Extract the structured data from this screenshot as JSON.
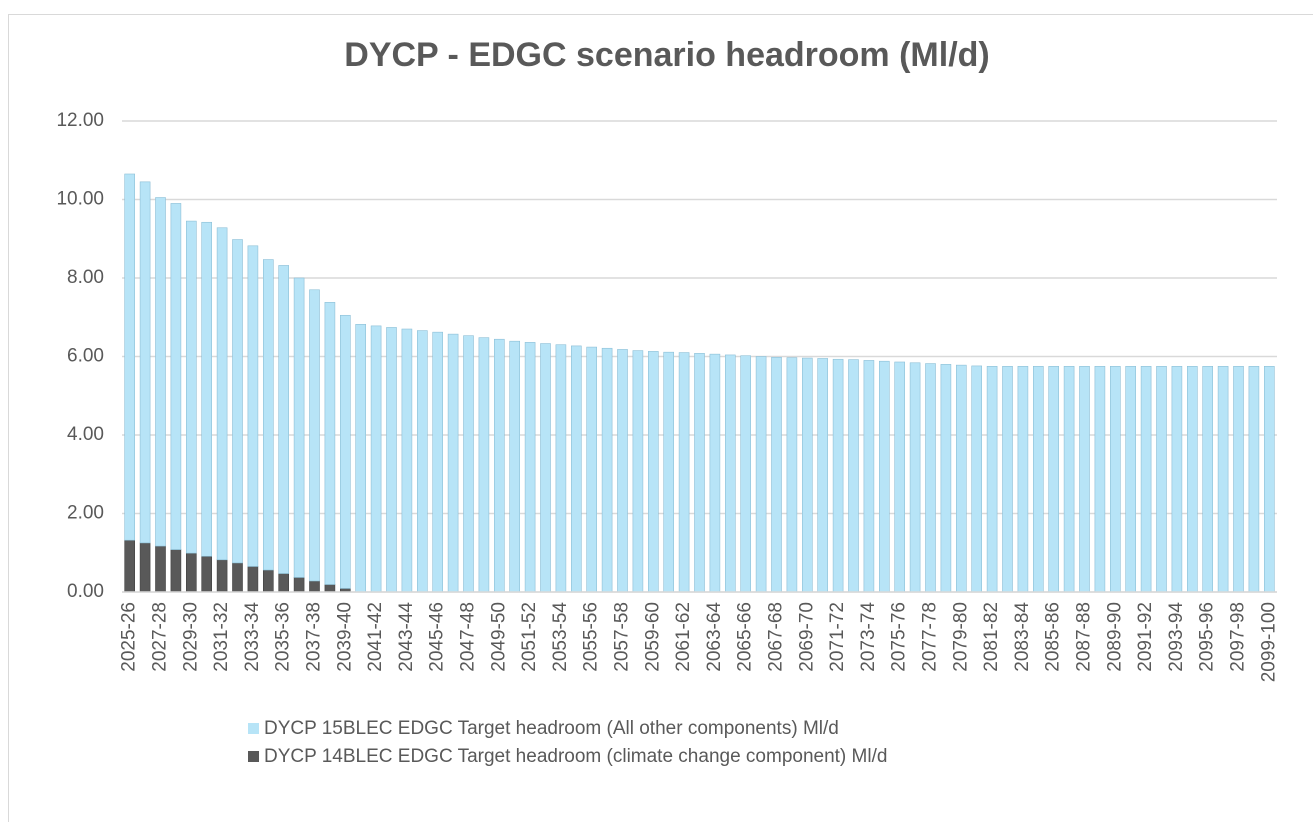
{
  "chart_data": {
    "type": "stacked_bar",
    "title": "DYCP - EDGC scenario headroom (Ml/d)",
    "categories": [
      "2025-26",
      null,
      "2027-28",
      null,
      "2029-30",
      null,
      "2031-32",
      null,
      "2033-34",
      null,
      "2035-36",
      null,
      "2037-38",
      null,
      "2039-40",
      null,
      "2041-42",
      null,
      "2043-44",
      null,
      "2045-46",
      null,
      "2047-48",
      null,
      "2049-50",
      null,
      "2051-52",
      null,
      "2053-54",
      null,
      "2055-56",
      null,
      "2057-58",
      null,
      "2059-60",
      null,
      "2061-62",
      null,
      "2063-64",
      null,
      "2065-66",
      null,
      "2067-68",
      null,
      "2069-70",
      null,
      "2071-72",
      null,
      "2073-74",
      null,
      "2075-76",
      null,
      "2077-78",
      null,
      "2079-80",
      null,
      "2081-82",
      null,
      "2083-84",
      null,
      "2085-86",
      null,
      "2087-88",
      null,
      "2089-90",
      null,
      "2091-92",
      null,
      "2093-94",
      null,
      "2095-96",
      null,
      "2097-98",
      null,
      "2099-100"
    ],
    "series": [
      {
        "name": "DYCP 15BLEC EDGC Target headroom (All other components) Ml/d",
        "color": "#b7e4f7",
        "values": [
          9.33,
          9.2,
          8.88,
          8.82,
          8.46,
          8.51,
          8.46,
          8.24,
          8.17,
          7.91,
          7.85,
          7.63,
          7.42,
          7.19,
          6.96,
          6.82,
          6.78,
          6.74,
          6.7,
          6.66,
          6.62,
          6.57,
          6.53,
          6.48,
          6.44,
          6.39,
          6.36,
          6.33,
          6.3,
          6.27,
          6.24,
          6.21,
          6.18,
          6.15,
          6.13,
          6.11,
          6.1,
          6.08,
          6.06,
          6.04,
          6.02,
          6.0,
          5.98,
          5.97,
          5.96,
          5.95,
          5.93,
          5.92,
          5.9,
          5.88,
          5.86,
          5.84,
          5.82,
          5.8,
          5.78,
          5.76,
          5.75,
          5.75,
          5.75,
          5.75,
          5.75,
          5.75,
          5.75,
          5.75,
          5.75,
          5.75,
          5.75,
          5.75,
          5.75,
          5.75,
          5.75,
          5.75,
          5.75,
          5.75,
          5.75
        ]
      },
      {
        "name": "DYCP 14BLEC EDGC Target headroom (climate change component) Ml/d",
        "color": "#595959",
        "values": [
          1.32,
          1.25,
          1.17,
          1.08,
          0.99,
          0.91,
          0.82,
          0.74,
          0.65,
          0.56,
          0.47,
          0.37,
          0.28,
          0.19,
          0.09,
          0,
          0,
          0,
          0,
          0,
          0,
          0,
          0,
          0,
          0,
          0,
          0,
          0,
          0,
          0,
          0,
          0,
          0,
          0,
          0,
          0,
          0,
          0,
          0,
          0,
          0,
          0,
          0,
          0,
          0,
          0,
          0,
          0,
          0,
          0,
          0,
          0,
          0,
          0,
          0,
          0,
          0,
          0,
          0,
          0,
          0,
          0,
          0,
          0,
          0,
          0,
          0,
          0,
          0,
          0,
          0,
          0,
          0,
          0,
          0
        ]
      }
    ],
    "ylim": [
      0,
      12
    ],
    "yticks": [
      {
        "value": 0,
        "label": "0.00"
      },
      {
        "value": 2,
        "label": "2.00"
      },
      {
        "value": 4,
        "label": "4.00"
      },
      {
        "value": 6,
        "label": "6.00"
      },
      {
        "value": 8,
        "label": "8.00"
      },
      {
        "value": 10,
        "label": "10.00"
      },
      {
        "value": 12,
        "label": "12.00"
      }
    ],
    "grid": true,
    "legend": "bottom"
  }
}
